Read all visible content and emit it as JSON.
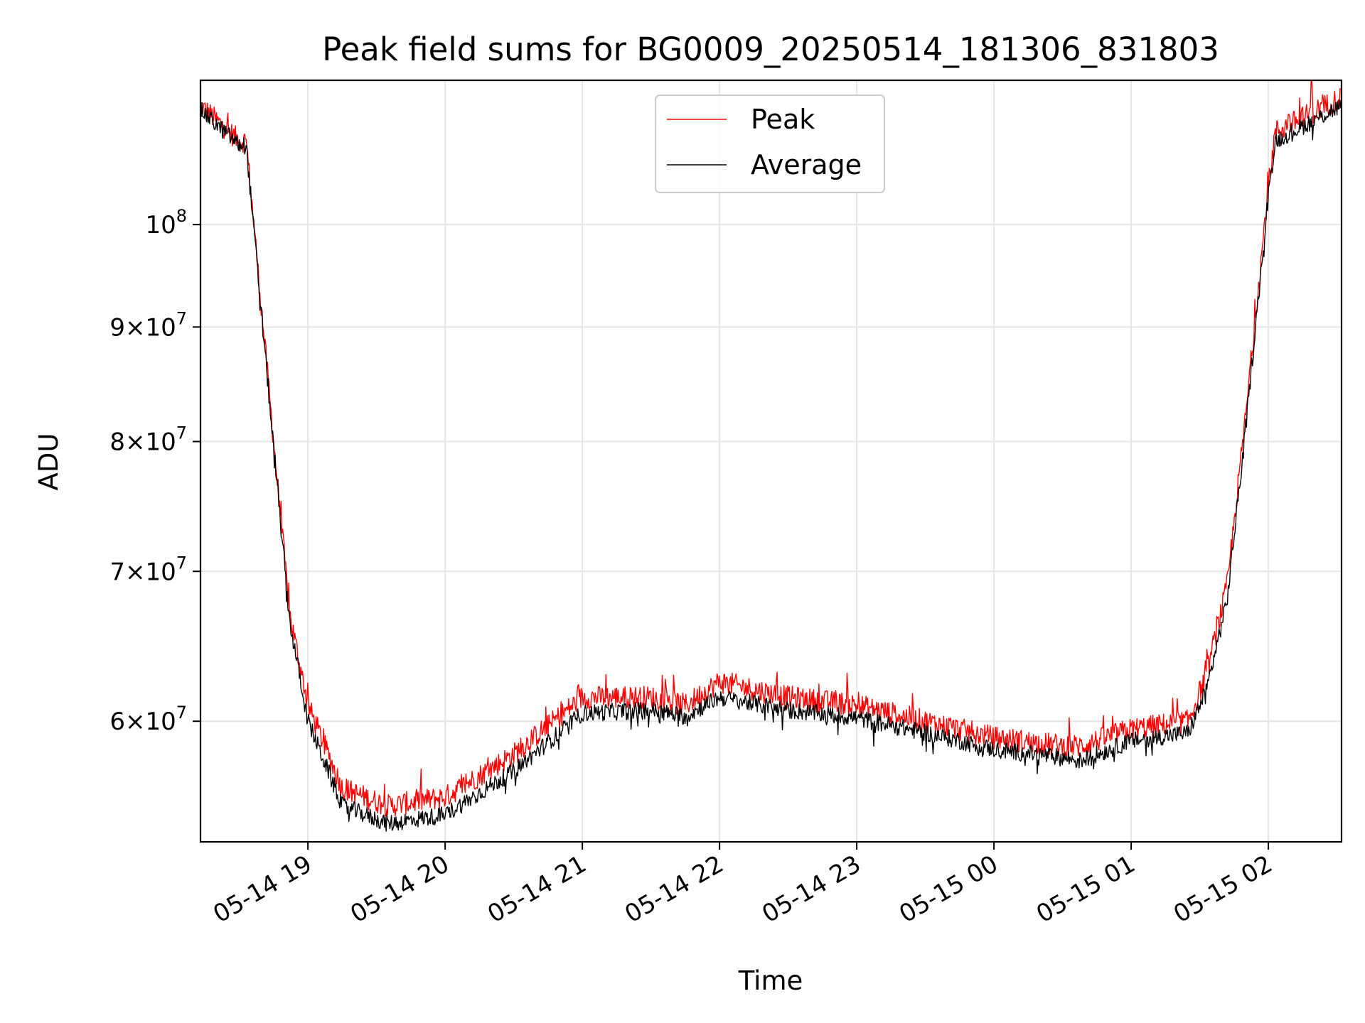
{
  "chart_data": {
    "type": "line",
    "title": "Peak field sums for BG0009_20250514_181306_831803",
    "xlabel": "Time",
    "ylabel": "ADU",
    "yscale": "log",
    "xlim": [
      "2025-05-14 18:13",
      "2025-05-15 02:32"
    ],
    "ylim": [
      53000000,
      116000000
    ],
    "grid": true,
    "legend_position": "top-center",
    "x_ticks": [
      "05-14 19",
      "05-14 20",
      "05-14 21",
      "05-14 22",
      "05-14 23",
      "05-15 00",
      "05-15 01",
      "05-15 02"
    ],
    "y_ticks": [
      {
        "value": 60000000,
        "mantissa": "6",
        "exponent": "7"
      },
      {
        "value": 70000000,
        "mantissa": "7",
        "exponent": "7"
      },
      {
        "value": 80000000,
        "mantissa": "8",
        "exponent": "7"
      },
      {
        "value": 90000000,
        "mantissa": "9",
        "exponent": "7"
      },
      {
        "value": 100000000,
        "mantissa": "",
        "exponent": "8"
      }
    ],
    "x": [
      "2025-05-14 18:13",
      "2025-05-14 18:30",
      "2025-05-14 18:33",
      "2025-05-14 18:40",
      "2025-05-14 18:46",
      "2025-05-14 18:52",
      "2025-05-14 19:00",
      "2025-05-14 19:15",
      "2025-05-14 19:35",
      "2025-05-14 20:00",
      "2025-05-14 20:30",
      "2025-05-14 21:00",
      "2025-05-14 21:30",
      "2025-05-14 21:45",
      "2025-05-14 22:00",
      "2025-05-14 22:30",
      "2025-05-14 23:00",
      "2025-05-14 23:30",
      "2025-05-15 00:00",
      "2025-05-15 00:30",
      "2025-05-15 00:38",
      "2025-05-15 01:00",
      "2025-05-15 01:25",
      "2025-05-15 01:33",
      "2025-05-15 01:42",
      "2025-05-15 01:50",
      "2025-05-15 02:00",
      "2025-05-15 02:03",
      "2025-05-15 02:32"
    ],
    "series": [
      {
        "name": "Peak",
        "color": "#ff0000",
        "values": [
          113000000,
          109000000,
          109000000,
          91000000,
          78000000,
          67000000,
          61000000,
          56000000,
          55000000,
          55500000,
          58000000,
          61500000,
          61500000,
          61000000,
          62500000,
          61500000,
          61000000,
          60000000,
          59000000,
          58500000,
          58500000,
          59500000,
          60000000,
          63000000,
          69000000,
          82000000,
          104000000,
          110000000,
          114000000
        ]
      },
      {
        "name": "Average",
        "color": "#000000",
        "values": [
          112500000,
          108500000,
          108500000,
          90500000,
          77500000,
          66500000,
          60000000,
          55000000,
          54000000,
          54500000,
          57000000,
          60500000,
          60700000,
          60300000,
          61500000,
          60700000,
          60200000,
          59300000,
          58300000,
          57800000,
          57600000,
          58800000,
          59300000,
          62000000,
          68000000,
          81000000,
          103000000,
          109000000,
          113000000
        ]
      }
    ],
    "spikes": [
      {
        "series": "Peak",
        "x": "2025-05-15 02:09",
        "value": 112000000
      },
      {
        "series": "Peak",
        "x": "2025-05-15 02:19",
        "value": 116000000
      }
    ]
  }
}
